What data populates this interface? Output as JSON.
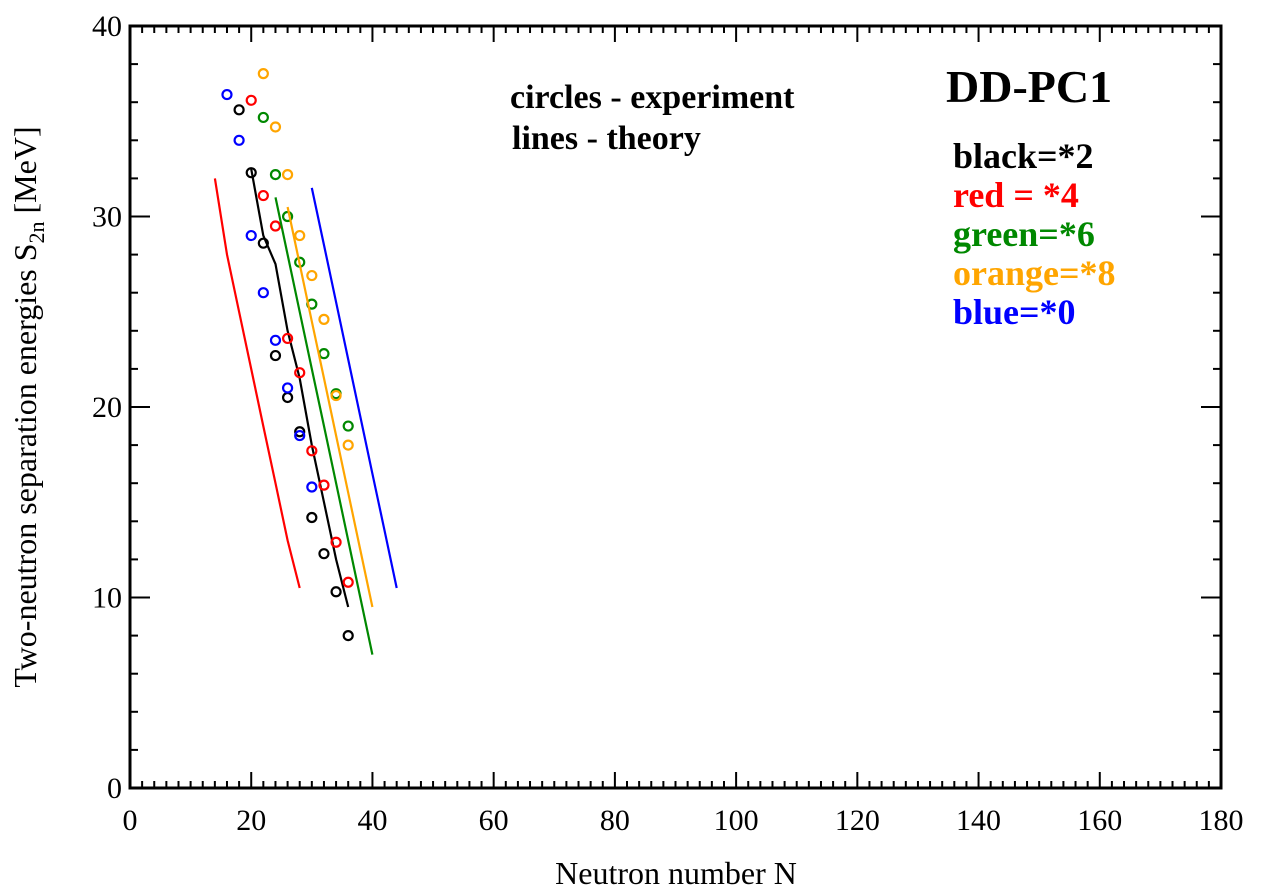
{
  "chart_data": {
    "type": "line",
    "title": "DD-PC1",
    "xlabel": "Neutron  number  N",
    "ylabel": "Two-neutron separation energies  S",
    "ylabel_sub": "2n",
    "ylabel_unit": " [MeV]",
    "xlim": [
      0,
      180
    ],
    "ylim": [
      0,
      40
    ],
    "x_ticks": [
      0,
      20,
      40,
      60,
      80,
      100,
      120,
      140,
      160,
      180
    ],
    "y_ticks": [
      0,
      10,
      20,
      30,
      40
    ],
    "grid": false,
    "annotations": {
      "line1": "circles - experiment",
      "line2": "lines - theory"
    },
    "legend": [
      {
        "label": "black=*2",
        "color": "#000000"
      },
      {
        "label": "red = *4",
        "color": "#ff0000"
      },
      {
        "label": "green=*6",
        "color": "#008800"
      },
      {
        "label": "orange=*8",
        "color": "#ffa500"
      },
      {
        "label": "blue=*0",
        "color": "#0000ff"
      }
    ],
    "legend_position": "top-right",
    "series": [
      {
        "color": "#000000",
        "theory": [
          [
            20,
            32.5
          ],
          [
            22,
            29.0
          ],
          [
            24,
            27.5
          ],
          [
            26,
            24.0
          ],
          [
            28,
            21.5
          ],
          [
            30,
            18.0
          ],
          [
            32,
            15.0
          ],
          [
            34,
            12.0
          ],
          [
            36,
            9.5
          ]
        ],
        "experiment": [
          [
            18,
            35.6
          ],
          [
            20,
            32.3
          ],
          [
            22,
            28.6
          ],
          [
            24,
            22.7
          ],
          [
            26,
            20.5
          ],
          [
            28,
            18.7
          ],
          [
            30,
            14.2
          ],
          [
            32,
            12.3
          ],
          [
            34,
            10.3
          ],
          [
            36,
            8.0
          ]
        ]
      },
      {
        "color": "#ff0000",
        "theory": [
          [
            14,
            32.0
          ],
          [
            16,
            28.0
          ],
          [
            18,
            25.0
          ],
          [
            20,
            22.0
          ],
          [
            22,
            19.0
          ],
          [
            24,
            16.0
          ],
          [
            26,
            13.0
          ],
          [
            28,
            10.5
          ]
        ],
        "experiment": [
          [
            20,
            36.1
          ],
          [
            22,
            31.1
          ],
          [
            24,
            29.5
          ],
          [
            26,
            23.6
          ],
          [
            28,
            21.8
          ],
          [
            30,
            17.7
          ],
          [
            32,
            15.9
          ],
          [
            34,
            12.9
          ],
          [
            36,
            10.8
          ]
        ]
      },
      {
        "color": "#008800",
        "theory": [
          [
            24,
            31.0
          ],
          [
            26,
            28.0
          ],
          [
            28,
            25.0
          ],
          [
            30,
            22.0
          ],
          [
            32,
            19.0
          ],
          [
            34,
            16.0
          ],
          [
            36,
            13.0
          ],
          [
            38,
            10.0
          ],
          [
            40,
            7.0
          ]
        ],
        "experiment": [
          [
            22,
            35.2
          ],
          [
            24,
            32.2
          ],
          [
            26,
            30.0
          ],
          [
            28,
            27.6
          ],
          [
            30,
            25.4
          ],
          [
            32,
            22.8
          ],
          [
            34,
            20.7
          ],
          [
            36,
            19.0
          ]
        ]
      },
      {
        "color": "#ffa500",
        "theory": [
          [
            26,
            30.5
          ],
          [
            28,
            27.5
          ],
          [
            30,
            24.5
          ],
          [
            32,
            21.5
          ],
          [
            34,
            18.5
          ],
          [
            36,
            15.5
          ],
          [
            38,
            12.5
          ],
          [
            40,
            9.5
          ]
        ],
        "experiment": [
          [
            22,
            37.5
          ],
          [
            24,
            34.7
          ],
          [
            26,
            32.2
          ],
          [
            28,
            29.0
          ],
          [
            30,
            26.9
          ],
          [
            32,
            24.6
          ],
          [
            34,
            20.6
          ],
          [
            36,
            18.0
          ]
        ]
      },
      {
        "color": "#0000ff",
        "theory": [
          [
            30,
            31.5
          ],
          [
            32,
            28.5
          ],
          [
            34,
            25.5
          ],
          [
            36,
            22.5
          ],
          [
            38,
            19.5
          ],
          [
            40,
            16.5
          ],
          [
            42,
            13.5
          ],
          [
            44,
            10.5
          ]
        ],
        "experiment": [
          [
            16,
            36.4
          ],
          [
            18,
            34.0
          ],
          [
            20,
            29.0
          ],
          [
            22,
            26.0
          ],
          [
            24,
            23.5
          ],
          [
            26,
            21.0
          ],
          [
            28,
            18.5
          ],
          [
            30,
            15.8
          ]
        ]
      }
    ]
  }
}
